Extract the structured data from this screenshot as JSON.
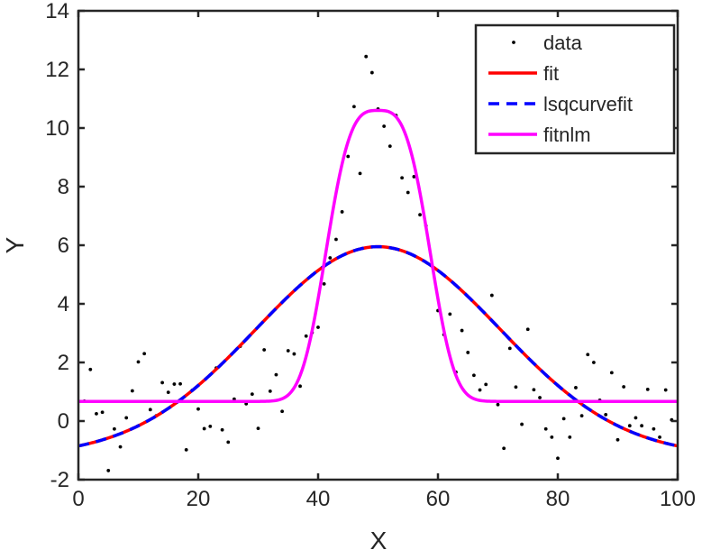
{
  "chart_data": {
    "type": "scatter",
    "title": "",
    "xlabel": "X",
    "ylabel": "Y",
    "xlim": [
      0,
      100
    ],
    "ylim": [
      -2,
      14
    ],
    "xticks": [
      0,
      20,
      40,
      60,
      80,
      100
    ],
    "yticks": [
      -2,
      0,
      2,
      4,
      6,
      8,
      10,
      12,
      14
    ],
    "grid": false,
    "legend_position": "top-right",
    "colors": {
      "data": "#000000",
      "fit": "#ff0000",
      "lsqcurvefit": "#0000ff",
      "fitnlm": "#ff00ff",
      "axis": "#262626"
    },
    "series": [
      {
        "name": "data",
        "style": "points",
        "x": [
          1,
          2,
          3,
          4,
          5,
          6,
          7,
          8,
          9,
          10,
          11,
          12,
          13,
          14,
          15,
          16,
          17,
          18,
          19,
          20,
          21,
          22,
          23,
          24,
          25,
          26,
          27,
          28,
          29,
          30,
          31,
          32,
          33,
          34,
          35,
          36,
          37,
          38,
          39,
          40,
          41,
          42,
          43,
          44,
          45,
          46,
          47,
          48,
          49,
          50,
          51,
          52,
          53,
          54,
          55,
          56,
          57,
          58,
          59,
          60,
          61,
          62,
          63,
          64,
          65,
          66,
          67,
          68,
          69,
          70,
          71,
          72,
          73,
          74,
          75,
          76,
          77,
          78,
          79,
          80,
          81,
          82,
          83,
          84,
          85,
          86,
          87,
          88,
          89,
          90,
          91,
          92,
          93,
          94,
          95,
          96,
          97,
          98,
          99
        ],
        "y": [
          0.68,
          1.76,
          0.25,
          0.3,
          -1.69,
          -0.27,
          -0.88,
          0.11,
          1.03,
          2.02,
          2.3,
          0.39,
          0.18,
          1.31,
          0.98,
          1.26,
          1.27,
          -0.98,
          1.05,
          0.41,
          -0.26,
          -0.18,
          1.81,
          -0.3,
          -0.72,
          0.75,
          2.55,
          0.59,
          0.92,
          -0.25,
          2.43,
          1.02,
          1.58,
          0.33,
          2.4,
          2.29,
          1.19,
          2.9,
          3.02,
          3.2,
          4.68,
          5.57,
          6.2,
          7.14,
          9.03,
          10.73,
          8.45,
          12.44,
          11.89,
          10.65,
          10.06,
          9.38,
          10.43,
          8.3,
          7.8,
          8.34,
          7.04,
          6.66,
          5.3,
          3.77,
          2.95,
          3.65,
          1.67,
          3.09,
          2.34,
          1.56,
          1.06,
          1.25,
          4.29,
          0.56,
          -0.93,
          2.48,
          1.16,
          -0.11,
          3.13,
          1.07,
          0.8,
          -0.27,
          -0.55,
          -1.27,
          0.08,
          -0.55,
          1.14,
          0.18,
          2.27,
          2.0,
          0.71,
          0.22,
          1.65,
          -0.64,
          1.17,
          -0.16,
          0.11,
          -0.16,
          1.08,
          -0.27,
          -0.55,
          1.06,
          0.04
        ]
      },
      {
        "name": "fit",
        "style": "solid",
        "model": {
          "amplitude": 7.15,
          "center": 50,
          "width": 28.8,
          "exponent": 2,
          "offset": -1.2
        }
      },
      {
        "name": "lsqcurvefit",
        "style": "dashed",
        "model": {
          "amplitude": 7.15,
          "center": 50,
          "width": 28.8,
          "exponent": 2,
          "offset": -1.2
        }
      },
      {
        "name": "fitnlm",
        "style": "solid",
        "model": {
          "amplitude": 9.93,
          "center": 50,
          "width": 9.87,
          "exponent": 3.2,
          "offset": 0.67
        }
      }
    ]
  }
}
